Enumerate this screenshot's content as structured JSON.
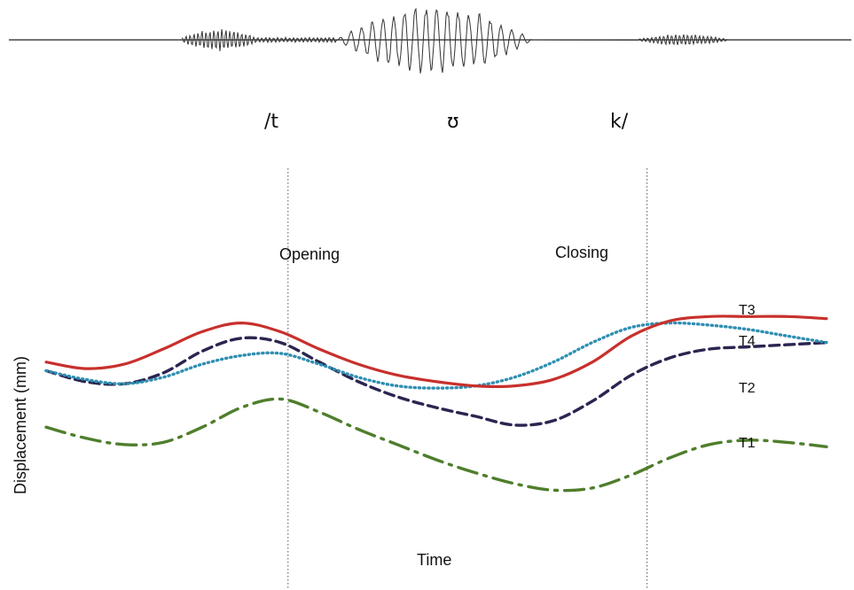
{
  "chart_data": {
    "type": "line",
    "title": "",
    "xlabel": "Time",
    "ylabel": "Displacement (mm)",
    "phonemes": [
      "/t",
      "ʊ",
      "k/"
    ],
    "annotations": [
      "Opening",
      "Closing"
    ],
    "markers_x": [
      0.31,
      0.77
    ],
    "xlim": [
      0,
      1
    ],
    "ylim": [
      0,
      1
    ],
    "grid": false,
    "legend": "inline labels at line ends",
    "series": [
      {
        "name": "T3",
        "color": "#c8302c",
        "dash": "solid",
        "x": [
          0.0,
          0.05,
          0.1,
          0.15,
          0.2,
          0.25,
          0.3,
          0.35,
          0.4,
          0.45,
          0.5,
          0.55,
          0.6,
          0.65,
          0.7,
          0.75,
          0.8,
          0.85,
          0.9,
          0.95,
          1.0
        ],
        "y": [
          0.74,
          0.71,
          0.73,
          0.8,
          0.88,
          0.92,
          0.88,
          0.8,
          0.73,
          0.68,
          0.65,
          0.63,
          0.63,
          0.66,
          0.74,
          0.86,
          0.93,
          0.95,
          0.95,
          0.95,
          0.94
        ]
      },
      {
        "name": "T4",
        "color": "#2f8fb2",
        "dash": "dotted",
        "x": [
          0.0,
          0.05,
          0.1,
          0.15,
          0.2,
          0.25,
          0.3,
          0.35,
          0.4,
          0.45,
          0.5,
          0.55,
          0.6,
          0.65,
          0.7,
          0.75,
          0.8,
          0.85,
          0.9,
          0.95,
          1.0
        ],
        "y": [
          0.7,
          0.66,
          0.64,
          0.67,
          0.73,
          0.77,
          0.78,
          0.73,
          0.67,
          0.63,
          0.62,
          0.63,
          0.67,
          0.74,
          0.83,
          0.9,
          0.92,
          0.91,
          0.89,
          0.86,
          0.83
        ]
      },
      {
        "name": "T2",
        "color": "#2a2550",
        "dash": "dashed",
        "x": [
          0.0,
          0.05,
          0.1,
          0.15,
          0.2,
          0.25,
          0.3,
          0.35,
          0.4,
          0.45,
          0.5,
          0.55,
          0.6,
          0.65,
          0.7,
          0.75,
          0.8,
          0.85,
          0.9,
          0.95,
          1.0
        ],
        "y": [
          0.7,
          0.65,
          0.64,
          0.69,
          0.79,
          0.85,
          0.83,
          0.74,
          0.65,
          0.58,
          0.53,
          0.49,
          0.45,
          0.47,
          0.56,
          0.68,
          0.76,
          0.8,
          0.81,
          0.82,
          0.83
        ]
      },
      {
        "name": "T1",
        "color": "#4f7e2c",
        "dash": "dashdot",
        "x": [
          0.0,
          0.05,
          0.1,
          0.15,
          0.2,
          0.25,
          0.3,
          0.35,
          0.4,
          0.45,
          0.5,
          0.55,
          0.6,
          0.65,
          0.7,
          0.75,
          0.8,
          0.85,
          0.9,
          0.95,
          1.0
        ],
        "y": [
          0.44,
          0.39,
          0.36,
          0.37,
          0.44,
          0.53,
          0.57,
          0.51,
          0.43,
          0.36,
          0.29,
          0.23,
          0.18,
          0.15,
          0.16,
          0.22,
          0.3,
          0.36,
          0.38,
          0.37,
          0.35
        ]
      }
    ]
  }
}
